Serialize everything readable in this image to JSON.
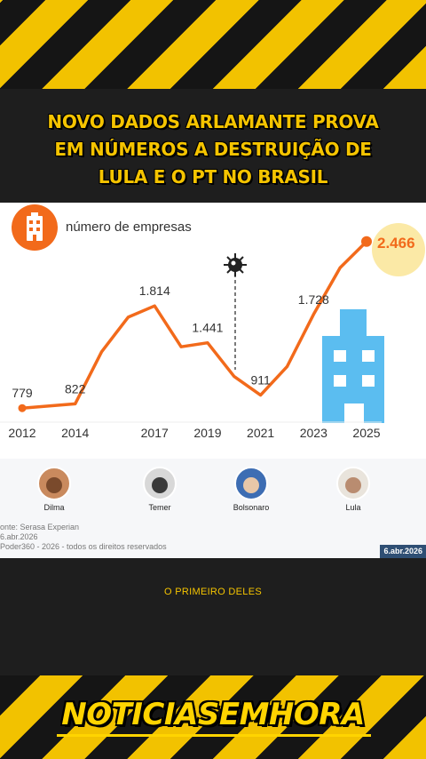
{
  "headline": {
    "line1": "NOVO DADOS ARLAMANTE PROVA",
    "line2": "EM NÚMEROS A DESTRUIÇÃO DE",
    "line3": "LULA E O PT NO BRASIL"
  },
  "chart_data": {
    "type": "line",
    "title": "número de empresas",
    "x": [
      2012,
      2014,
      2015,
      2016,
      2017,
      2018,
      2019,
      2020,
      2021,
      2022,
      2023,
      2024,
      2025
    ],
    "values": [
      779,
      822,
      1350,
      1700,
      1814,
      1400,
      1441,
      1100,
      911,
      1200,
      1728,
      2200,
      2466
    ],
    "labeled_points": [
      {
        "x": 2012,
        "label": "779"
      },
      {
        "x": 2014,
        "label": "822"
      },
      {
        "x": 2017,
        "label": "1.814"
      },
      {
        "x": 2019,
        "label": "1.441"
      },
      {
        "x": 2021,
        "label": "911"
      },
      {
        "x": 2023,
        "label": "1.728"
      },
      {
        "x": 2025,
        "label": "2.466"
      }
    ],
    "tick_labels": [
      "2012",
      "2014",
      "2017",
      "2019",
      "2021",
      "2023",
      "2025"
    ],
    "xlim": [
      2012,
      2025
    ],
    "ylim": [
      700,
      2500
    ],
    "line_color": "#f26a1b",
    "highlight_color": "#fbe9a6",
    "grid": false,
    "annotation": "virus-icon marker at 2020"
  },
  "presidents": [
    {
      "name": "Dilma"
    },
    {
      "name": "Temer"
    },
    {
      "name": "Bolsonaro"
    },
    {
      "name": "Lula"
    }
  ],
  "source": {
    "line1": "onte: Serasa Experian",
    "line2": "6.abr.2026",
    "line3": "Poder360 - 2026 - todos os direitos reservados"
  },
  "footer_date": "6.abr.2026",
  "caption": "O PRIMEIRO DELES",
  "brand": "NOTICIASEMHORA",
  "colors": {
    "stripe_yellow": "#f2c200",
    "headline_yellow": "#f5c400",
    "chart_orange": "#f26a1b",
    "building_blue": "#5bbdf0"
  }
}
